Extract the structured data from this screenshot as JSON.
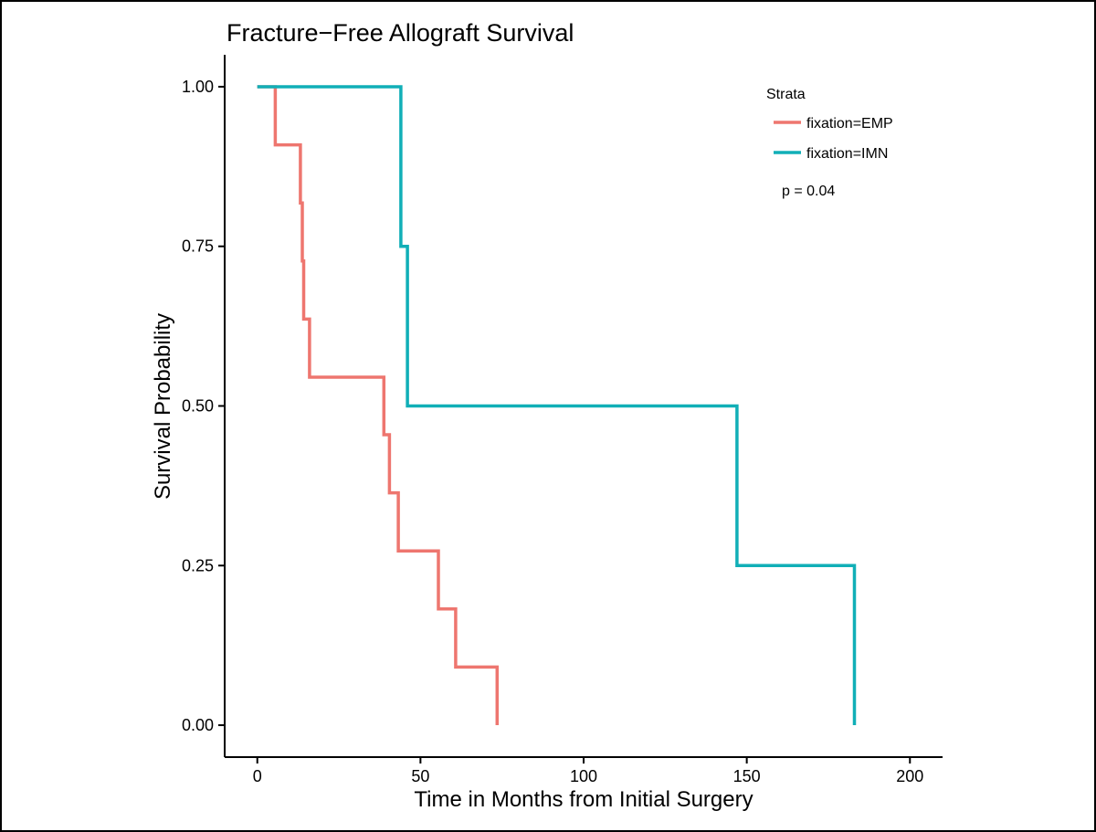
{
  "chart_data": {
    "type": "line",
    "title": "Fracture−Free Allograft Survival",
    "xlabel": "Time in Months from Initial Surgery",
    "ylabel": "Survival Probability",
    "xlim": [
      -10,
      210
    ],
    "ylim": [
      -0.05,
      1.05
    ],
    "x_ticks": [
      0,
      50,
      100,
      150,
      200
    ],
    "x_tick_labels": [
      "0",
      "50",
      "100",
      "150",
      "200"
    ],
    "y_ticks": [
      0,
      0.25,
      0.5,
      0.75,
      1
    ],
    "y_tick_labels": [
      "0.00",
      "0.25",
      "0.50",
      "0.75",
      "1.00"
    ],
    "grid": false,
    "legend": {
      "title": "Strata",
      "placement": "top-right"
    },
    "annotation": "p = 0.04",
    "step": true,
    "series": [
      {
        "name": "fixation=EMP",
        "color": "#EE766F",
        "points": [
          [
            0,
            1.0
          ],
          [
            5.5,
            1.0
          ],
          [
            5.5,
            0.909
          ],
          [
            13.2,
            0.909
          ],
          [
            13.2,
            0.818
          ],
          [
            13.8,
            0.818
          ],
          [
            13.8,
            0.727
          ],
          [
            14.2,
            0.727
          ],
          [
            14.2,
            0.636
          ],
          [
            16,
            0.636
          ],
          [
            16,
            0.545
          ],
          [
            38.8,
            0.545
          ],
          [
            38.8,
            0.455
          ],
          [
            40.5,
            0.455
          ],
          [
            40.5,
            0.364
          ],
          [
            43.2,
            0.364
          ],
          [
            43.2,
            0.273
          ],
          [
            55.5,
            0.273
          ],
          [
            55.5,
            0.182
          ],
          [
            60.8,
            0.182
          ],
          [
            60.8,
            0.091
          ],
          [
            73.5,
            0.091
          ],
          [
            73.5,
            0.0
          ]
        ]
      },
      {
        "name": "fixation=IMN",
        "color": "#11AFB7",
        "points": [
          [
            0,
            1.0
          ],
          [
            44,
            1.0
          ],
          [
            44,
            0.75
          ],
          [
            46,
            0.75
          ],
          [
            46,
            0.5
          ],
          [
            147,
            0.5
          ],
          [
            147,
            0.25
          ],
          [
            183,
            0.25
          ],
          [
            183,
            0.0
          ]
        ]
      }
    ]
  }
}
